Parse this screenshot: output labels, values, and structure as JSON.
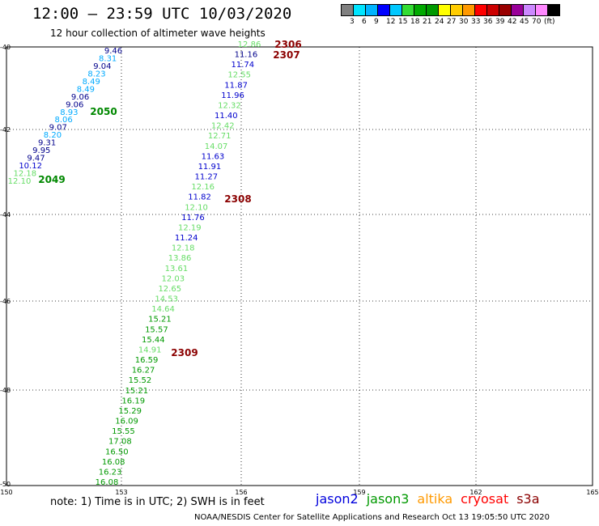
{
  "title": "12:00 – 23:59 UTC 10/03/2020",
  "subtitle": "12 hour collection of altimeter wave heights",
  "colorbar": {
    "colors": [
      "#808080",
      "#00e5ff",
      "#00b4ff",
      "#0000ff",
      "#00c8ff",
      "#33dd33",
      "#00aa00",
      "#009900",
      "#ffff00",
      "#ffcc00",
      "#ff9900",
      "#ff0000",
      "#cc0000",
      "#990000",
      "#990099",
      "#cc88ff",
      "#ff88ff",
      "#000000"
    ],
    "labels": [
      "3",
      "6",
      "9",
      "12",
      "15",
      "18",
      "21",
      "24",
      "27",
      "30",
      "33",
      "36",
      "39",
      "42",
      "45",
      "70",
      "(ft)"
    ]
  },
  "map": {
    "lon_ticks": [
      "150",
      "153",
      "156",
      "159",
      "162",
      "165"
    ],
    "lat_ticks": [
      "-40",
      "-42",
      "-44",
      "-46",
      "-48",
      "-50"
    ]
  },
  "tracks": [
    {
      "label": "2306",
      "label_color": "#8b0000",
      "points": [
        {
          "swh": "12.86",
          "color": "#66dd66"
        },
        {
          "swh": "11.16",
          "color": "#00008b"
        },
        {
          "swh": "11.74",
          "color": "#0000cd"
        },
        {
          "swh": "12.55",
          "color": "#66dd66"
        },
        {
          "swh": "11.87",
          "color": "#0000cd"
        },
        {
          "swh": "11.96",
          "color": "#0000cd"
        },
        {
          "swh": "12.32",
          "color": "#66dd66"
        },
        {
          "swh": "11.40",
          "color": "#0000cd"
        },
        {
          "swh": "12.42",
          "color": "#66dd66"
        },
        {
          "swh": "12.71",
          "color": "#66dd66"
        },
        {
          "swh": "14.07",
          "color": "#66dd66"
        },
        {
          "swh": "11.63",
          "color": "#0000cd"
        },
        {
          "swh": "11.91",
          "color": "#0000cd"
        },
        {
          "swh": "11.27",
          "color": "#0000cd"
        },
        {
          "swh": "12.16",
          "color": "#66dd66"
        },
        {
          "swh": "11.82",
          "color": "#0000cd"
        },
        {
          "swh": "12.10",
          "color": "#66dd66"
        },
        {
          "swh": "11.76",
          "color": "#0000cd"
        },
        {
          "swh": "12.19",
          "color": "#66dd66"
        },
        {
          "swh": "11.24",
          "color": "#0000cd"
        },
        {
          "swh": "12.18",
          "color": "#66dd66"
        },
        {
          "swh": "13.86",
          "color": "#66dd66"
        },
        {
          "swh": "13.61",
          "color": "#66dd66"
        },
        {
          "swh": "12.03",
          "color": "#66dd66"
        },
        {
          "swh": "12.65",
          "color": "#66dd66"
        },
        {
          "swh": "14.53",
          "color": "#66dd66"
        },
        {
          "swh": "14.64",
          "color": "#66dd66"
        },
        {
          "swh": "15.21",
          "color": "#009900"
        },
        {
          "swh": "15.57",
          "color": "#009900"
        },
        {
          "swh": "15.44",
          "color": "#009900"
        },
        {
          "swh": "14.91",
          "color": "#66dd66"
        },
        {
          "swh": "16.59",
          "color": "#009900"
        },
        {
          "swh": "16.27",
          "color": "#009900"
        },
        {
          "swh": "15.52",
          "color": "#009900"
        },
        {
          "swh": "15.21",
          "color": "#009900"
        },
        {
          "swh": "16.19",
          "color": "#009900"
        },
        {
          "swh": "15.29",
          "color": "#009900"
        },
        {
          "swh": "16.09",
          "color": "#009900"
        },
        {
          "swh": "15.55",
          "color": "#009900"
        },
        {
          "swh": "17.08",
          "color": "#009900"
        },
        {
          "swh": "16.50",
          "color": "#009900"
        },
        {
          "swh": "16.08",
          "color": "#009900"
        },
        {
          "swh": "16.23",
          "color": "#009900"
        },
        {
          "swh": "16.08",
          "color": "#009900"
        }
      ]
    },
    {
      "label": "2050",
      "label_color": "#008800",
      "points": [
        {
          "swh": "9.46",
          "color": "#00008b"
        },
        {
          "swh": "8.31",
          "color": "#00aaff"
        },
        {
          "swh": "9.04",
          "color": "#00008b"
        },
        {
          "swh": "8.23",
          "color": "#00aaff"
        },
        {
          "swh": "8.49",
          "color": "#00aaff"
        },
        {
          "swh": "8.49",
          "color": "#00aaff"
        },
        {
          "swh": "9.06",
          "color": "#00008b"
        },
        {
          "swh": "9.06",
          "color": "#00008b"
        },
        {
          "swh": "8.93",
          "color": "#00aaff"
        },
        {
          "swh": "8.06",
          "color": "#00aaff"
        },
        {
          "swh": "9.07",
          "color": "#00008b"
        },
        {
          "swh": "8.20",
          "color": "#00aaff"
        },
        {
          "swh": "9.31",
          "color": "#00008b"
        },
        {
          "swh": "9.95",
          "color": "#00008b"
        },
        {
          "swh": "9.47",
          "color": "#00008b"
        },
        {
          "swh": "10.12",
          "color": "#0000cd"
        },
        {
          "swh": "12.18",
          "color": "#66dd66"
        },
        {
          "swh": "12.10",
          "color": "#66dd66"
        }
      ]
    }
  ],
  "track_labels": [
    {
      "text": "2306",
      "color": "#8b0000"
    },
    {
      "text": "2307",
      "color": "#8b0000"
    },
    {
      "text": "2308",
      "color": "#8b0000"
    },
    {
      "text": "2309",
      "color": "#8b0000"
    },
    {
      "text": "2050",
      "color": "#008800"
    },
    {
      "text": "2049",
      "color": "#008800"
    }
  ],
  "note": "note:  1) Time is in UTC;  2) SWH is in feet",
  "legend": [
    {
      "name": "jason2",
      "color": "#0000dd"
    },
    {
      "name": "jason3",
      "color": "#009900"
    },
    {
      "name": "altika",
      "color": "#ff9900"
    },
    {
      "name": "cryosat",
      "color": "#ff0000"
    },
    {
      "name": "s3a",
      "color": "#8b0000"
    }
  ],
  "footer": "NOAA/NESDIS Center for Satellite Applications and Research     Oct 13 19:05:50 UTC 2020"
}
